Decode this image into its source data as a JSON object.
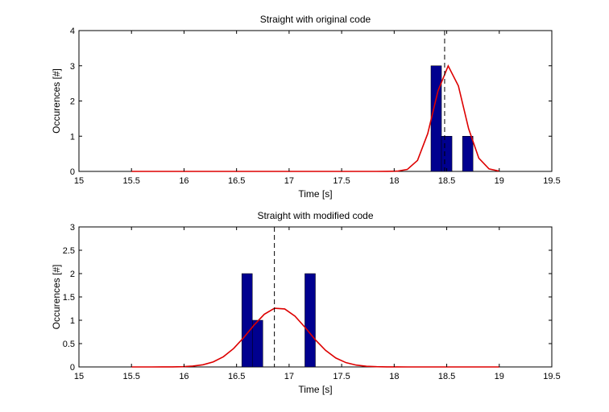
{
  "colors": {
    "bar": "#00008F",
    "curve": "#DD0000",
    "mean_line": "#000000",
    "axes": "#000000"
  },
  "chart_data": [
    {
      "type": "bar",
      "title": "Straight with original code",
      "xlabel": "Time [s]",
      "ylabel": "Occurences [#]",
      "xlim": [
        15,
        19.5
      ],
      "ylim": [
        0,
        4
      ],
      "xticks": [
        "15",
        "15.5",
        "16",
        "16.5",
        "17",
        "17.5",
        "18",
        "18.5",
        "19",
        "19.5"
      ],
      "yticks": [
        "0",
        "1",
        "2",
        "3",
        "4"
      ],
      "bin_width": 0.1,
      "bars": [
        {
          "x": 18.4,
          "value": 3
        },
        {
          "x": 18.5,
          "value": 1
        },
        {
          "x": 18.7,
          "value": 1
        }
      ],
      "mean_line_x": 18.48,
      "fit_curve": {
        "name": "normal fit",
        "mean": 18.52,
        "sigma": 0.14,
        "peak": 3.0,
        "x_range": [
          15.5,
          19.0
        ]
      },
      "grid": false
    },
    {
      "type": "bar",
      "title": "Straight with modified code",
      "xlabel": "Time [s]",
      "ylabel": "Occurences [#]",
      "xlim": [
        15,
        19.5
      ],
      "ylim": [
        0,
        3
      ],
      "xticks": [
        "15",
        "15.5",
        "16",
        "16.5",
        "17",
        "17.5",
        "18",
        "18.5",
        "19",
        "19.5"
      ],
      "yticks": [
        "0",
        "0.5",
        "1",
        "1.5",
        "2",
        "2.5",
        "3"
      ],
      "bin_width": 0.1,
      "bars": [
        {
          "x": 16.6,
          "value": 2
        },
        {
          "x": 16.7,
          "value": 1
        },
        {
          "x": 17.2,
          "value": 2
        }
      ],
      "mean_line_x": 16.86,
      "fit_curve": {
        "name": "normal fit",
        "mean": 16.9,
        "sigma": 0.28,
        "peak": 1.27,
        "x_range": [
          15.5,
          19.0
        ]
      },
      "grid": false
    }
  ]
}
